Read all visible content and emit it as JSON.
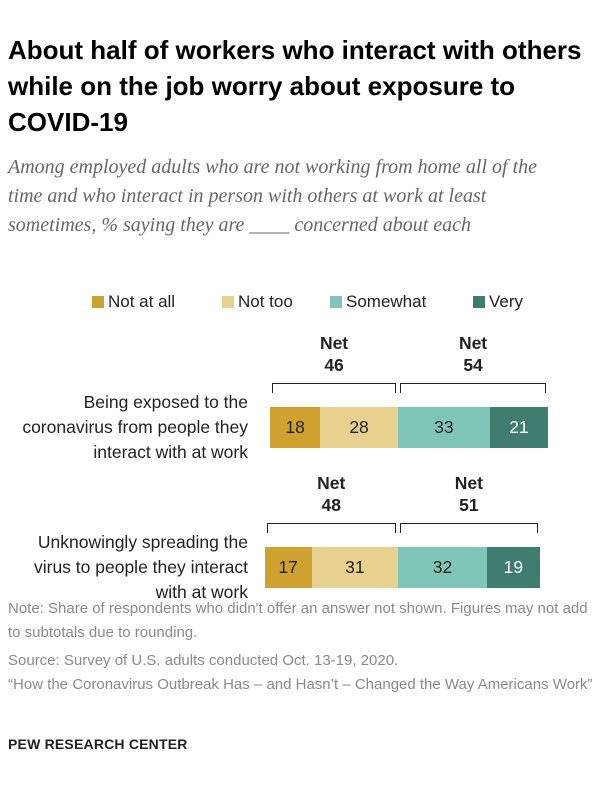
{
  "chart_data": {
    "type": "bar",
    "orientation": "horizontal",
    "stacked": true,
    "diverging": true,
    "title": "About half of workers who interact with others while on the job worry about exposure to COVID-19",
    "subtitle": "Among employed adults who are not working from home all of the time and who interact in person with others at work at least sometimes, % saying they are ____ concerned about each",
    "categories": [
      "Being exposed to the coronavirus from people they interact with at work",
      "Unknowingly spreading the virus to people they interact with at work"
    ],
    "series": [
      {
        "name": "Not at all",
        "color": "#cfa22f",
        "values": [
          18,
          17
        ]
      },
      {
        "name": "Not too",
        "color": "#e8d08e",
        "values": [
          28,
          31
        ]
      },
      {
        "name": "Somewhat",
        "color": "#7fc6b8",
        "values": [
          33,
          32
        ]
      },
      {
        "name": "Very",
        "color": "#3e7d6f",
        "values": [
          21,
          19
        ]
      }
    ],
    "nets": [
      {
        "label": "Net",
        "values": [
          46,
          48
        ]
      },
      {
        "label": "Net",
        "values": [
          54,
          51
        ]
      }
    ],
    "notes": [
      "Note: Share of respondents who didn't offer an answer not shown. Figures may not add to subtotals due to rounding.",
      "Source: Survey of U.S. adults conducted Oct. 13-19, 2020.",
      "“How the Coronavirus Outbreak Has – and Hasn’t – Changed the Way Americans Work”"
    ],
    "source": "PEW RESEARCH CENTER"
  }
}
